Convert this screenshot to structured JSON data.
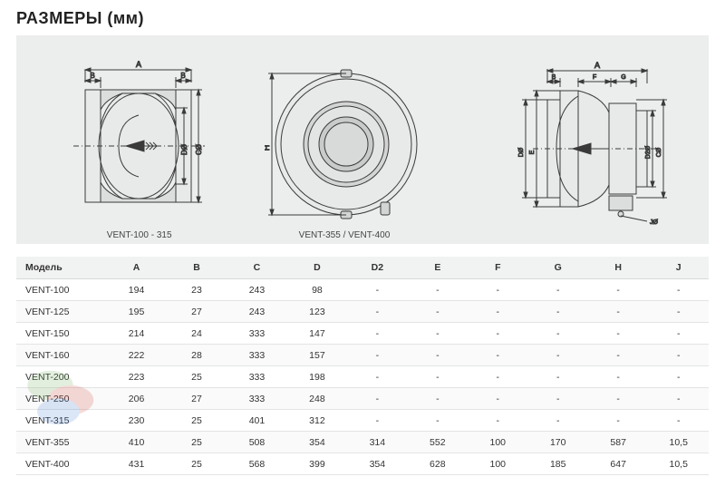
{
  "title": "РАЗМЕРЫ (мм)",
  "diagrams": {
    "left_caption": "VENT-100 - 315",
    "right_caption": "VENT-355 / VENT-400",
    "dim_labels": {
      "A": "A",
      "B": "B",
      "C": "CØ",
      "D": "DØ",
      "D2": "D2Ø",
      "E": "E",
      "F": "F",
      "G": "G",
      "H": "H",
      "J": "JØ"
    },
    "stroke": "#3a3a3a",
    "fill": "#cfd0d0",
    "bg": "#eceded"
  },
  "table": {
    "columns": [
      "Модель",
      "A",
      "B",
      "C",
      "D",
      "D2",
      "E",
      "F",
      "G",
      "H",
      "J"
    ],
    "col_widths": [
      "13%",
      "8.7%",
      "8.7%",
      "8.7%",
      "8.7%",
      "8.7%",
      "8.7%",
      "8.7%",
      "8.7%",
      "8.7%",
      "8.7%"
    ],
    "header_bg": "#f1f2f2",
    "row_border": "#e3e4e4",
    "rows": [
      [
        "VENT-100",
        "194",
        "23",
        "243",
        "98",
        "-",
        "-",
        "-",
        "-",
        "-",
        "-"
      ],
      [
        "VENT-125",
        "195",
        "27",
        "243",
        "123",
        "-",
        "-",
        "-",
        "-",
        "-",
        "-"
      ],
      [
        "VENT-150",
        "214",
        "24",
        "333",
        "147",
        "-",
        "-",
        "-",
        "-",
        "-",
        "-"
      ],
      [
        "VENT-160",
        "222",
        "28",
        "333",
        "157",
        "-",
        "-",
        "-",
        "-",
        "-",
        "-"
      ],
      [
        "VENT-200",
        "223",
        "25",
        "333",
        "198",
        "-",
        "-",
        "-",
        "-",
        "-",
        "-"
      ],
      [
        "VENT-250",
        "206",
        "27",
        "333",
        "248",
        "-",
        "-",
        "-",
        "-",
        "-",
        "-"
      ],
      [
        "VENT-315",
        "230",
        "25",
        "401",
        "312",
        "-",
        "-",
        "-",
        "-",
        "-",
        "-"
      ],
      [
        "VENT-355",
        "410",
        "25",
        "508",
        "354",
        "314",
        "552",
        "100",
        "170",
        "587",
        "10,5"
      ],
      [
        "VENT-400",
        "431",
        "25",
        "568",
        "399",
        "354",
        "628",
        "100",
        "185",
        "647",
        "10,5"
      ]
    ]
  }
}
